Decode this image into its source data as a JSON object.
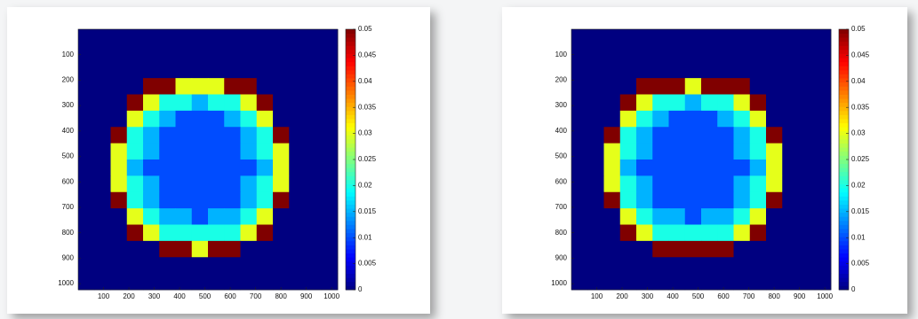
{
  "chart_data": [
    {
      "type": "heatmap",
      "colormap": "jet",
      "y_reversed": true,
      "xlim": [
        0,
        1024
      ],
      "ylim": [
        0,
        1024
      ],
      "xticks": [
        100,
        200,
        300,
        400,
        500,
        600,
        700,
        800,
        900,
        1000
      ],
      "yticks": [
        100,
        200,
        300,
        400,
        500,
        600,
        700,
        800,
        900,
        1000
      ],
      "clim": [
        0,
        0.05
      ],
      "cticks": [
        0,
        0.005,
        0.01,
        0.015,
        0.02,
        0.025,
        0.03,
        0.035,
        0.04,
        0.045,
        0.05
      ],
      "z": [
        [
          0,
          0,
          0,
          0,
          0,
          0,
          0,
          0,
          0,
          0,
          0,
          0,
          0,
          0,
          0,
          0
        ],
        [
          0,
          0,
          0,
          0,
          0,
          0,
          0,
          0,
          0,
          0,
          0,
          0,
          0,
          0,
          0,
          0
        ],
        [
          0,
          0,
          0,
          0,
          0,
          0,
          0,
          0,
          0,
          0,
          0,
          0,
          0,
          0,
          0,
          0
        ],
        [
          0,
          0,
          0,
          0,
          0.05,
          0.05,
          0.03,
          0.03,
          0.03,
          0.05,
          0.05,
          0,
          0,
          0,
          0,
          0
        ],
        [
          0,
          0,
          0,
          0.05,
          0.03,
          0.02,
          0.02,
          0.015,
          0.02,
          0.02,
          0.03,
          0.05,
          0,
          0,
          0,
          0
        ],
        [
          0,
          0,
          0,
          0.03,
          0.02,
          0.015,
          0.01,
          0.01,
          0.01,
          0.015,
          0.02,
          0.03,
          0,
          0,
          0,
          0
        ],
        [
          0,
          0,
          0.05,
          0.02,
          0.015,
          0.01,
          0.01,
          0.01,
          0.01,
          0.01,
          0.015,
          0.02,
          0.05,
          0,
          0,
          0
        ],
        [
          0,
          0,
          0.03,
          0.02,
          0.015,
          0.01,
          0.01,
          0.01,
          0.01,
          0.01,
          0.015,
          0.02,
          0.03,
          0,
          0,
          0
        ],
        [
          0,
          0,
          0.03,
          0.015,
          0.01,
          0.01,
          0.01,
          0.01,
          0.01,
          0.01,
          0.01,
          0.015,
          0.03,
          0,
          0,
          0
        ],
        [
          0,
          0,
          0.03,
          0.02,
          0.015,
          0.01,
          0.01,
          0.01,
          0.01,
          0.01,
          0.015,
          0.02,
          0.03,
          0,
          0,
          0
        ],
        [
          0,
          0,
          0.05,
          0.02,
          0.015,
          0.01,
          0.01,
          0.01,
          0.01,
          0.01,
          0.015,
          0.02,
          0.05,
          0,
          0,
          0
        ],
        [
          0,
          0,
          0,
          0.03,
          0.02,
          0.015,
          0.015,
          0.01,
          0.015,
          0.015,
          0.02,
          0.03,
          0,
          0,
          0,
          0
        ],
        [
          0,
          0,
          0,
          0.05,
          0.03,
          0.02,
          0.02,
          0.02,
          0.02,
          0.02,
          0.03,
          0.05,
          0,
          0,
          0,
          0
        ],
        [
          0,
          0,
          0,
          0,
          0,
          0.05,
          0.05,
          0.03,
          0.05,
          0.05,
          0,
          0,
          0,
          0,
          0,
          0
        ],
        [
          0,
          0,
          0,
          0,
          0,
          0,
          0,
          0,
          0,
          0,
          0,
          0,
          0,
          0,
          0,
          0
        ],
        [
          0,
          0,
          0,
          0,
          0,
          0,
          0,
          0,
          0,
          0,
          0,
          0,
          0,
          0,
          0,
          0
        ]
      ]
    },
    {
      "type": "heatmap",
      "colormap": "jet",
      "y_reversed": true,
      "xlim": [
        0,
        1024
      ],
      "ylim": [
        0,
        1024
      ],
      "xticks": [
        100,
        200,
        300,
        400,
        500,
        600,
        700,
        800,
        900,
        1000
      ],
      "yticks": [
        100,
        200,
        300,
        400,
        500,
        600,
        700,
        800,
        900,
        1000
      ],
      "clim": [
        0,
        0.05
      ],
      "cticks": [
        0,
        0.005,
        0.01,
        0.015,
        0.02,
        0.025,
        0.03,
        0.035,
        0.04,
        0.045,
        0.05
      ],
      "z": [
        [
          0,
          0,
          0,
          0,
          0,
          0,
          0,
          0,
          0,
          0,
          0,
          0,
          0,
          0,
          0,
          0
        ],
        [
          0,
          0,
          0,
          0,
          0,
          0,
          0,
          0,
          0,
          0,
          0,
          0,
          0,
          0,
          0,
          0
        ],
        [
          0,
          0,
          0,
          0,
          0,
          0,
          0,
          0,
          0,
          0,
          0,
          0,
          0,
          0,
          0,
          0
        ],
        [
          0,
          0,
          0,
          0,
          0.05,
          0.05,
          0.05,
          0.03,
          0.05,
          0.05,
          0.05,
          0,
          0,
          0,
          0,
          0
        ],
        [
          0,
          0,
          0,
          0.05,
          0.03,
          0.02,
          0.02,
          0.015,
          0.02,
          0.02,
          0.03,
          0.05,
          0,
          0,
          0,
          0
        ],
        [
          0,
          0,
          0,
          0.03,
          0.02,
          0.015,
          0.01,
          0.01,
          0.01,
          0.015,
          0.02,
          0.03,
          0,
          0,
          0,
          0
        ],
        [
          0,
          0,
          0.05,
          0.02,
          0.015,
          0.01,
          0.01,
          0.01,
          0.01,
          0.01,
          0.015,
          0.02,
          0.05,
          0,
          0,
          0
        ],
        [
          0,
          0,
          0.03,
          0.02,
          0.015,
          0.01,
          0.01,
          0.01,
          0.01,
          0.01,
          0.015,
          0.02,
          0.03,
          0,
          0,
          0
        ],
        [
          0,
          0,
          0.03,
          0.015,
          0.01,
          0.01,
          0.01,
          0.01,
          0.01,
          0.01,
          0.01,
          0.015,
          0.03,
          0,
          0,
          0
        ],
        [
          0,
          0,
          0.03,
          0.02,
          0.015,
          0.01,
          0.01,
          0.01,
          0.01,
          0.01,
          0.015,
          0.02,
          0.03,
          0,
          0,
          0
        ],
        [
          0,
          0,
          0.05,
          0.02,
          0.015,
          0.01,
          0.01,
          0.01,
          0.01,
          0.01,
          0.015,
          0.02,
          0.05,
          0,
          0,
          0
        ],
        [
          0,
          0,
          0,
          0.03,
          0.02,
          0.015,
          0.015,
          0.01,
          0.015,
          0.015,
          0.02,
          0.03,
          0,
          0,
          0,
          0
        ],
        [
          0,
          0,
          0,
          0.05,
          0.03,
          0.02,
          0.02,
          0.02,
          0.02,
          0.02,
          0.03,
          0.05,
          0,
          0,
          0,
          0
        ],
        [
          0,
          0,
          0,
          0,
          0,
          0.05,
          0.05,
          0.05,
          0.05,
          0.05,
          0,
          0,
          0,
          0,
          0,
          0
        ],
        [
          0,
          0,
          0,
          0,
          0,
          0,
          0,
          0,
          0,
          0,
          0,
          0,
          0,
          0,
          0,
          0
        ],
        [
          0,
          0,
          0,
          0,
          0,
          0,
          0,
          0,
          0,
          0,
          0,
          0,
          0,
          0,
          0,
          0
        ]
      ]
    }
  ]
}
